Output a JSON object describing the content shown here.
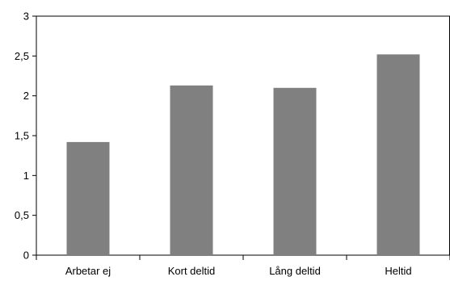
{
  "chart_data": {
    "type": "bar",
    "categories": [
      "Arbetar ej",
      "Kort deltid",
      "Lång deltid",
      "Heltid"
    ],
    "values": [
      1.42,
      2.13,
      2.1,
      2.52
    ],
    "ylim": [
      0,
      3
    ],
    "yticks": [
      0,
      0.5,
      1,
      1.5,
      2,
      2.5,
      3
    ],
    "ytick_labels": [
      "0",
      "0,5",
      "1",
      "1,5",
      "2",
      "2,5",
      "3"
    ],
    "title": "",
    "xlabel": "",
    "ylabel": "",
    "grid": false,
    "legend": "none",
    "bar_color": "#808080",
    "axis_color": "#000000"
  }
}
